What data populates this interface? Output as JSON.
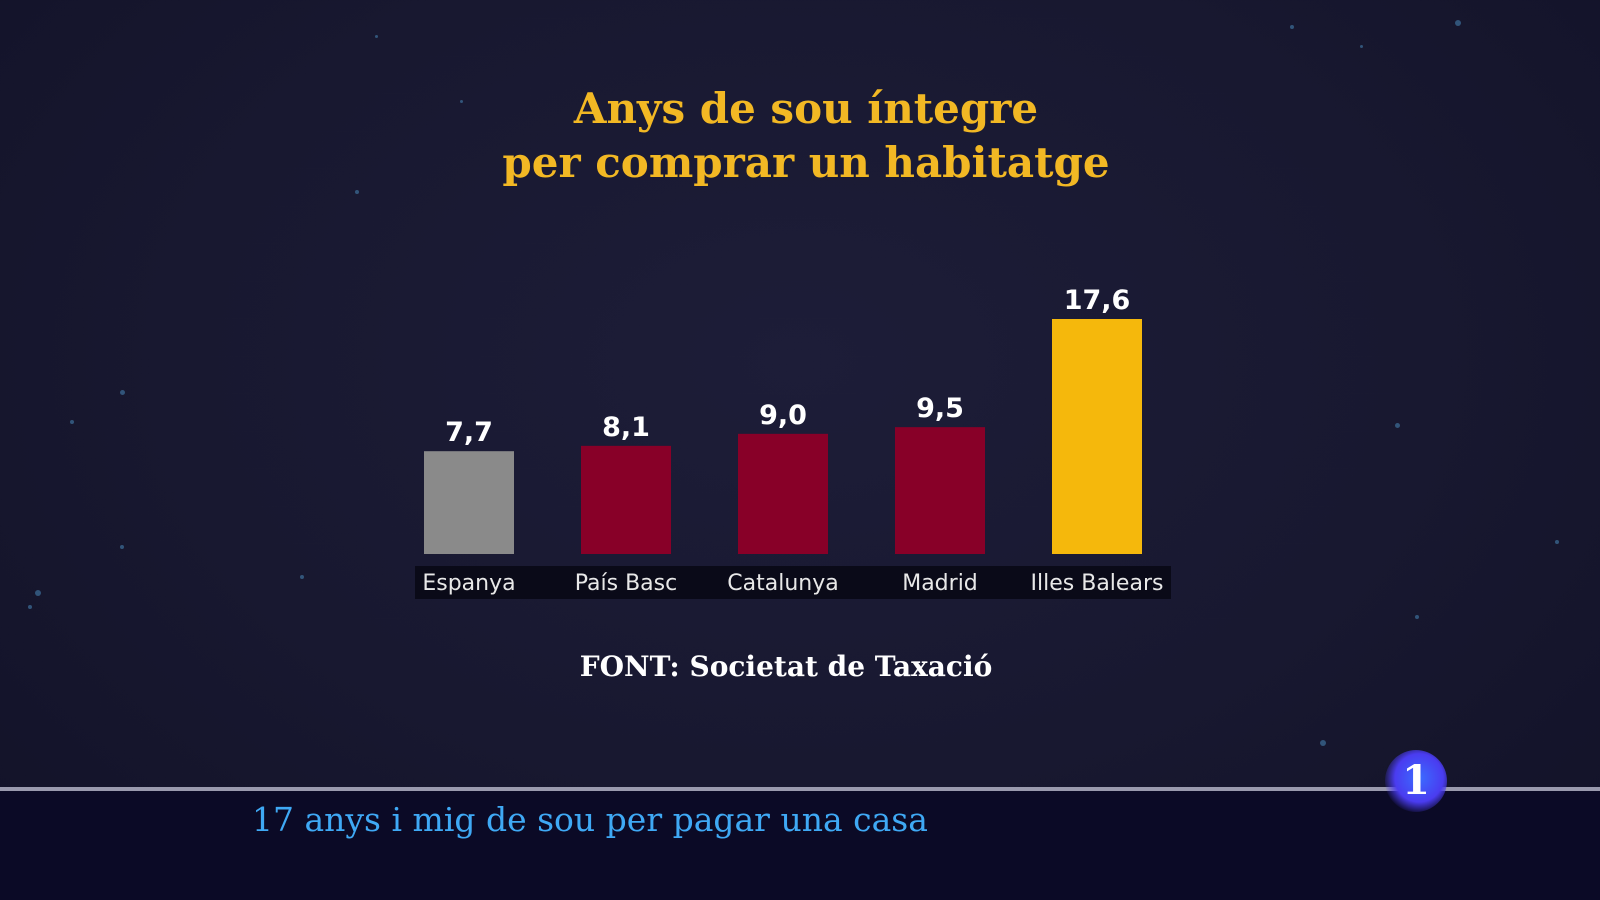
{
  "chart_data": {
    "type": "bar",
    "title": "Anys de sou íntegre per comprar un habitatge",
    "title_lines": [
      "Anys de sou íntegre",
      "per comprar un habitatge"
    ],
    "categories": [
      "Espanya",
      "País Basc",
      "Catalunya",
      "Madrid",
      "Illes Balears"
    ],
    "values": [
      7.7,
      8.1,
      9.0,
      9.5,
      17.6
    ],
    "value_labels": [
      "7,7",
      "8,1",
      "9,0",
      "9,5",
      "17,6"
    ],
    "colors": [
      "#8a8a8a",
      "#880028",
      "#880028",
      "#880028",
      "#f5b80c"
    ],
    "xlabel": "",
    "ylabel": "",
    "ylim": [
      0,
      17.6
    ],
    "grid": false,
    "legend": "none"
  },
  "source": "FONT: Societat de Taxació",
  "ticker": "17 anys i mig de sou per pagar una casa",
  "channel_logo": "1",
  "colors": {
    "title": "#f2b824",
    "ticker_text": "#3fa9f5",
    "background": "#181830"
  }
}
